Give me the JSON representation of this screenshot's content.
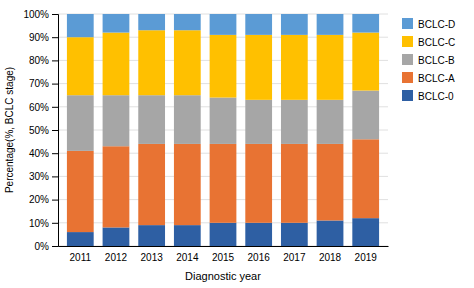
{
  "chart_data": {
    "type": "bar",
    "stacked": true,
    "x_label": "Diagnostic year",
    "y_label": "Percentage(%, BCLC stage)",
    "categories": [
      "2011",
      "2012",
      "2013",
      "2014",
      "2015",
      "2016",
      "2017",
      "2018",
      "2019"
    ],
    "series": [
      {
        "name": "BCLC-0",
        "color": "#2E5FA3",
        "values": [
          6,
          8,
          9,
          9,
          10,
          10,
          10,
          11,
          12
        ]
      },
      {
        "name": "BCLC-A",
        "color": "#E87333",
        "values": [
          35,
          35,
          35,
          35,
          34,
          34,
          34,
          33,
          34
        ]
      },
      {
        "name": "BCLC-B",
        "color": "#A6A6A6",
        "values": [
          24,
          22,
          21,
          21,
          20,
          19,
          19,
          19,
          21
        ]
      },
      {
        "name": "BCLC-C",
        "color": "#FFC000",
        "values": [
          25,
          27,
          28,
          28,
          27,
          28,
          28,
          28,
          25
        ]
      },
      {
        "name": "BCLC-D",
        "color": "#5B9BD5",
        "values": [
          10,
          8,
          7,
          7,
          9,
          9,
          9,
          9,
          8
        ]
      }
    ],
    "ylim": [
      0,
      100
    ],
    "yticks": [
      {
        "value": 0,
        "label": "0%"
      },
      {
        "value": 10,
        "label": "10%"
      },
      {
        "value": 20,
        "label": "20%"
      },
      {
        "value": 30,
        "label": "30%"
      },
      {
        "value": 40,
        "label": "40%"
      },
      {
        "value": 50,
        "label": "50%"
      },
      {
        "value": 60,
        "label": "60%"
      },
      {
        "value": 70,
        "label": "70%"
      },
      {
        "value": 80,
        "label": "80%"
      },
      {
        "value": 90,
        "label": "90%"
      },
      {
        "value": 100,
        "label": "100%"
      }
    ],
    "grid": true,
    "legend": "right"
  }
}
